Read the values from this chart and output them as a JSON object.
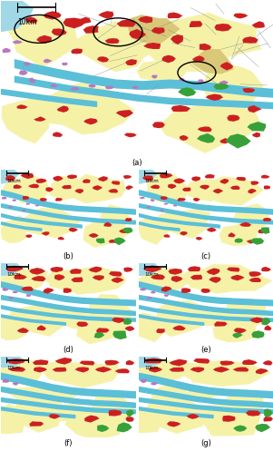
{
  "bg_color": "#ffffff",
  "col_yellow": "#f0e870",
  "col_light_yellow": "#f5f2a8",
  "col_red": "#cc2020",
  "col_blue": "#5bbfd8",
  "col_green": "#38a038",
  "col_purple": "#b878c0",
  "col_gray": "#9898a8",
  "col_light_blue": "#a0d8e8",
  "col_tan": "#d8c878",
  "col_olive": "#c8c050",
  "label_fontsize": 6,
  "scalebar_text": "10km"
}
